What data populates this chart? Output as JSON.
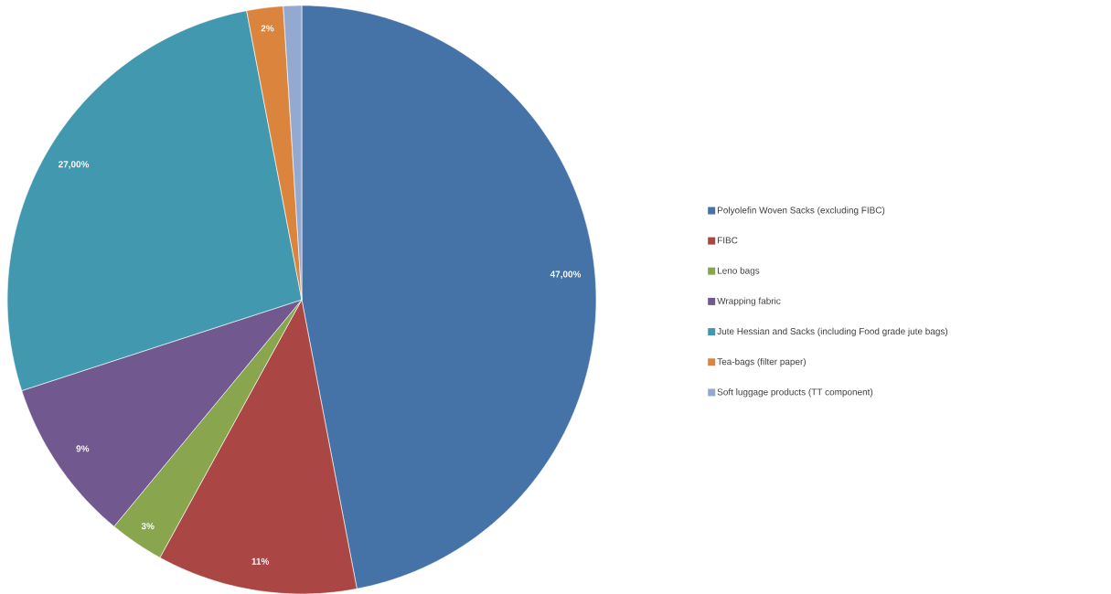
{
  "chart_data": {
    "type": "pie",
    "categories": [
      "Polyolefin Woven Sacks (excluding FIBC)",
      "FIBC",
      "Leno bags",
      "Wrapping fabric",
      "Jute Hessian and Sacks (including Food grade jute bags)",
      "Tea-bags (filter paper)",
      "Soft luggage products (TT component)"
    ],
    "values": [
      47,
      11,
      3,
      9,
      27,
      2,
      1
    ],
    "colors": [
      "#4572a7",
      "#aa4643",
      "#89a54e",
      "#71588f",
      "#4198af",
      "#db843d",
      "#93a9cf"
    ],
    "value_labels": [
      "47,00%",
      "11%",
      "3%",
      "9%",
      "27,00%",
      "2%",
      null
    ],
    "legend": "right"
  }
}
